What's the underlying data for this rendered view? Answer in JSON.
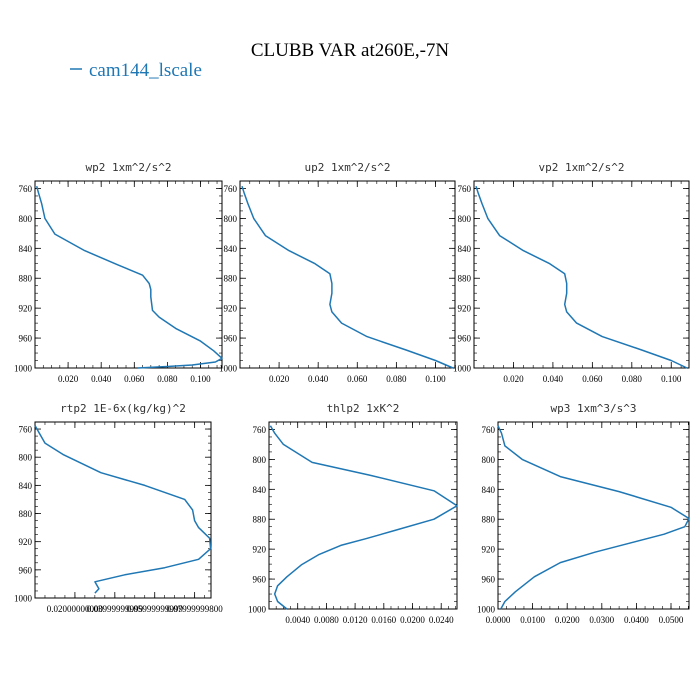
{
  "figure": {
    "title": "CLUBB VAR at260E,-7N",
    "legend_label": "cam144_lscale",
    "line_color": "#1f77b4"
  },
  "chart_data": [
    {
      "type": "line",
      "title": "wp2  1xm^2/s^2",
      "xlabel": "",
      "ylabel": "",
      "xlim": [
        0.0,
        0.113
      ],
      "ylim": [
        1000,
        750
      ],
      "xticks": [
        0.02,
        0.04,
        0.06,
        0.08,
        0.1
      ],
      "xtick_labels": [
        "0.020",
        "0.040",
        "0.060",
        "0.080",
        "0.100"
      ],
      "yticks": [
        760,
        800,
        840,
        880,
        920,
        960,
        1000
      ],
      "ytick_labels": [
        "760",
        "800",
        "840",
        "880",
        "920",
        "960",
        "1000"
      ],
      "series": [
        {
          "x": [
            0.001,
            0.002,
            0.004,
            0.006,
            0.012,
            0.03,
            0.05,
            0.065,
            0.069,
            0.07,
            0.07,
            0.071,
            0.075,
            0.085,
            0.1,
            0.108,
            0.113,
            0.109,
            0.095,
            0.08,
            0.062
          ],
          "y": [
            757,
            765,
            780,
            800,
            821,
            843,
            862,
            876,
            887,
            895,
            905,
            923,
            932,
            947,
            964,
            977,
            987,
            992,
            996,
            998,
            1000
          ]
        }
      ]
    },
    {
      "type": "line",
      "title": "up2  1xm^2/s^2",
      "xlabel": "",
      "ylabel": "",
      "xlim": [
        0.0,
        0.11
      ],
      "ylim": [
        1000,
        750
      ],
      "xticks": [
        0.02,
        0.04,
        0.06,
        0.08,
        0.1
      ],
      "xtick_labels": [
        "0.020",
        "0.040",
        "0.060",
        "0.080",
        "0.100"
      ],
      "yticks": [
        760,
        800,
        840,
        880,
        920,
        960,
        1000
      ],
      "ytick_labels": [
        "760",
        "800",
        "840",
        "880",
        "920",
        "960",
        "1000"
      ],
      "series": [
        {
          "x": [
            0.001,
            0.002,
            0.004,
            0.007,
            0.013,
            0.025,
            0.038,
            0.046,
            0.047,
            0.047,
            0.046,
            0.047,
            0.052,
            0.065,
            0.085,
            0.1,
            0.109
          ],
          "y": [
            757,
            765,
            780,
            800,
            823,
            843,
            860,
            874,
            887,
            900,
            915,
            925,
            940,
            958,
            976,
            990,
            1000
          ]
        }
      ]
    },
    {
      "type": "line",
      "title": "vp2  1xm^2/s^2",
      "xlabel": "",
      "ylabel": "",
      "xlim": [
        0.0,
        0.109
      ],
      "ylim": [
        1000,
        750
      ],
      "xticks": [
        0.02,
        0.04,
        0.06,
        0.08,
        0.1
      ],
      "xtick_labels": [
        "0.020",
        "0.040",
        "0.060",
        "0.080",
        "0.100"
      ],
      "yticks": [
        760,
        800,
        840,
        880,
        920,
        960,
        1000
      ],
      "ytick_labels": [
        "760",
        "800",
        "840",
        "880",
        "920",
        "960",
        "1000"
      ],
      "series": [
        {
          "x": [
            0.001,
            0.002,
            0.004,
            0.007,
            0.013,
            0.025,
            0.038,
            0.046,
            0.047,
            0.047,
            0.046,
            0.047,
            0.052,
            0.065,
            0.085,
            0.1,
            0.108
          ],
          "y": [
            757,
            765,
            780,
            800,
            823,
            843,
            860,
            874,
            887,
            900,
            915,
            925,
            940,
            958,
            976,
            990,
            1000
          ]
        }
      ]
    },
    {
      "type": "line",
      "title": "rtp2  1E-6x(kg/kg)^2",
      "xlabel": "",
      "ylabel": "",
      "xlim": [
        0.0,
        0.0882
      ],
      "ylim": [
        1000,
        750
      ],
      "xticks": [
        0.02,
        0.04,
        0.06,
        0.08
      ],
      "xtick_labels": [
        "0.02000000000",
        "0.03999999999",
        "0.05999999999",
        "0.07999999800"
      ],
      "yticks": [
        760,
        800,
        840,
        880,
        920,
        960,
        1000
      ],
      "ytick_labels": [
        "760",
        "800",
        "840",
        "880",
        "920",
        "960",
        "1000"
      ],
      "series": [
        {
          "x": [
            0.0,
            0.002,
            0.005,
            0.014,
            0.033,
            0.055,
            0.075,
            0.079,
            0.08,
            0.082,
            0.0875,
            0.088,
            0.082,
            0.065,
            0.045,
            0.03,
            0.032,
            0.03
          ],
          "y": [
            755,
            765,
            780,
            796,
            822,
            840,
            860,
            875,
            890,
            900,
            915,
            930,
            945,
            957,
            967,
            977,
            987,
            993
          ]
        }
      ]
    },
    {
      "type": "line",
      "title": "thlp2  1xK^2",
      "xlabel": "",
      "ylabel": "",
      "xlim": [
        0.0,
        0.0262
      ],
      "ylim": [
        1000,
        750
      ],
      "xticks": [
        0.004,
        0.008,
        0.012,
        0.016,
        0.02,
        0.024
      ],
      "xtick_labels": [
        "0.0040",
        "0.0080",
        "0.0120",
        "0.0160",
        "0.0200",
        "0.0240"
      ],
      "yticks": [
        760,
        800,
        840,
        880,
        920,
        960,
        1000
      ],
      "ytick_labels": [
        "760",
        "800",
        "840",
        "880",
        "920",
        "960",
        "1000"
      ],
      "series": [
        {
          "x": [
            0.0002,
            0.0008,
            0.002,
            0.006,
            0.014,
            0.023,
            0.0262,
            0.023,
            0.0175,
            0.0135,
            0.01,
            0.007,
            0.0045,
            0.0025,
            0.0012,
            0.0008,
            0.0012,
            0.0025
          ],
          "y": [
            755,
            765,
            780,
            804,
            821,
            842,
            862,
            880,
            895,
            906,
            915,
            927,
            941,
            957,
            969,
            980,
            990,
            1000
          ]
        }
      ]
    },
    {
      "type": "line",
      "title": "wp3  1xm^3/s^3",
      "xlabel": "",
      "ylabel": "",
      "xlim": [
        0.0,
        0.0552
      ],
      "ylim": [
        1000,
        750
      ],
      "xticks": [
        0.0,
        0.01,
        0.02,
        0.03,
        0.04,
        0.05
      ],
      "xtick_labels": [
        "0.0000",
        "0.0100",
        "0.0200",
        "0.0300",
        "0.0400",
        "0.0500"
      ],
      "yticks": [
        760,
        800,
        840,
        880,
        920,
        960,
        1000
      ],
      "ytick_labels": [
        "760",
        "800",
        "840",
        "880",
        "920",
        "960",
        "1000"
      ],
      "series": [
        {
          "x": [
            0.0,
            0.001,
            0.002,
            0.007,
            0.018,
            0.035,
            0.05,
            0.0552,
            0.054,
            0.048,
            0.038,
            0.028,
            0.018,
            0.0105,
            0.005,
            0.002,
            0.0008
          ],
          "y": [
            755,
            765,
            782,
            800,
            823,
            843,
            864,
            879,
            890,
            900,
            912,
            924,
            938,
            957,
            977,
            990,
            1000
          ]
        }
      ]
    }
  ]
}
